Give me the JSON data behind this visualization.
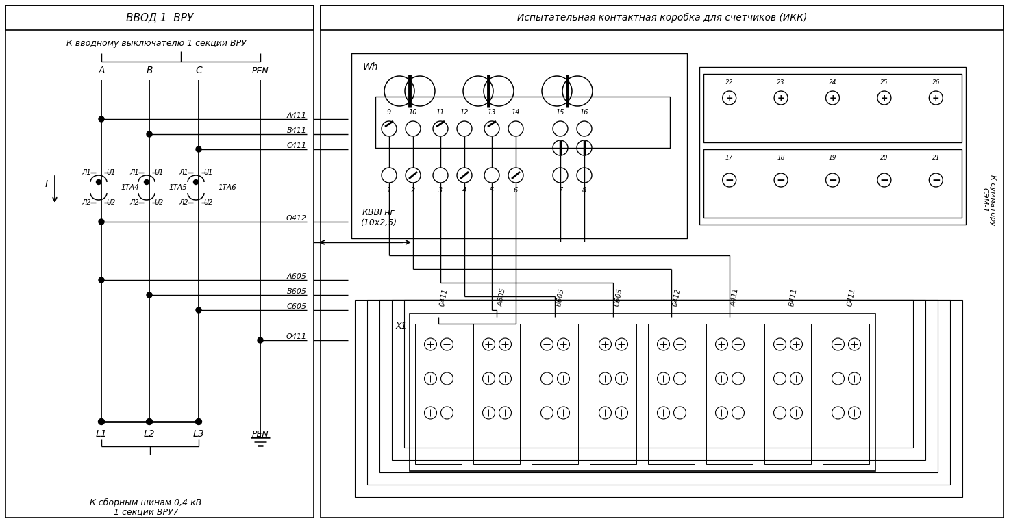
{
  "bg_color": "#ffffff",
  "title_left": "ВВОД 1  ВРУ",
  "title_right": "Испытательная контактная коробка для счетчиков (ИКК)",
  "text_top_left": "К вводному выключателю 1 секции ВРУ",
  "text_bottom_left1": "К сборным шинам 0,4 кВ",
  "text_bottom_left2": "1 секции ВРУ7",
  "phases": [
    "A",
    "B",
    "C",
    "PEN"
  ],
  "labels_bottom": [
    "L1",
    "L2",
    "L3",
    "PEN"
  ],
  "ta_labels": [
    "1ТА4",
    "1ТА5",
    "1ТА6"
  ],
  "wire_labels_right": [
    "А411",
    "В411",
    "С411",
    "О412",
    "А605",
    "В605",
    "С605",
    "О411"
  ],
  "ikk_bottom_labels": [
    "0411",
    "А605",
    "В605",
    "С605",
    "0412",
    "А411",
    "В411",
    "С411"
  ],
  "ikk_top_numbers": [
    9,
    10,
    11,
    12,
    13,
    14,
    15,
    16
  ],
  "ikk_bot_numbers": [
    1,
    2,
    3,
    4,
    5,
    6,
    7,
    8
  ],
  "summ_top": [
    22,
    23,
    24,
    25,
    26
  ],
  "summ_bottom": [
    17,
    18,
    19,
    20,
    21
  ],
  "cable_label": "КВВГнг\n(10х2,5)",
  "summ_label": "К сумматору\nСЭМ-1",
  "wh_label": "Wh",
  "x1_label": "X1"
}
